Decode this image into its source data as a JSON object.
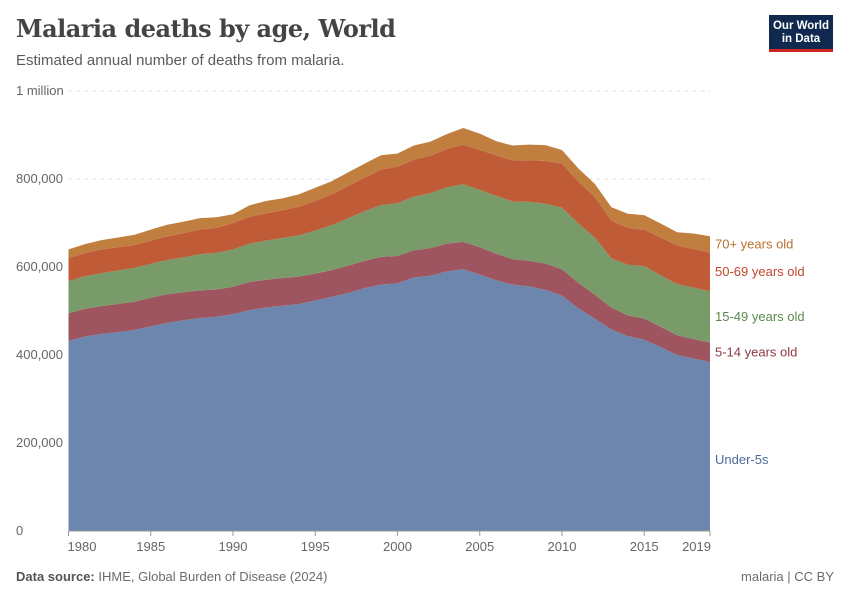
{
  "header": {
    "title": "Malaria deaths by age, World",
    "subtitle": "Estimated annual number of deaths from malaria.",
    "logo_text": "Our World in Data"
  },
  "footer": {
    "source_label": "Data source:",
    "source": "IHME, Global Burden of Disease (2024)",
    "license": "malaria | CC BY"
  },
  "chart_data": {
    "type": "area",
    "stacked": true,
    "title": "Malaria deaths by age, World",
    "subtitle": "Estimated annual number of deaths from malaria.",
    "xlim": [
      1980,
      2019
    ],
    "ylim": [
      0,
      1000000
    ],
    "x_ticks": [
      1980,
      1985,
      1990,
      1995,
      2000,
      2005,
      2010,
      2015,
      2019
    ],
    "y_ticks": [
      {
        "v": 0,
        "label": "0"
      },
      {
        "v": 200000,
        "label": "200,000"
      },
      {
        "v": 400000,
        "label": "400,000"
      },
      {
        "v": 600000,
        "label": "600,000"
      },
      {
        "v": 800000,
        "label": "800,000"
      },
      {
        "v": 1000000,
        "label": "1 million"
      }
    ],
    "grid": "horizontal dashed",
    "legend": "right, inline labels",
    "x": [
      1980,
      1981,
      1982,
      1983,
      1984,
      1985,
      1986,
      1987,
      1988,
      1989,
      1990,
      1991,
      1992,
      1993,
      1994,
      1995,
      1996,
      1997,
      1998,
      1999,
      2000,
      2001,
      2002,
      2003,
      2004,
      2005,
      2006,
      2007,
      2008,
      2009,
      2010,
      2011,
      2012,
      2013,
      2014,
      2015,
      2016,
      2017,
      2018,
      2019
    ],
    "series": [
      {
        "name": "Under-5s",
        "color": "#6d86ad",
        "label_color": "#4c6a9c",
        "values": [
          432000,
          442000,
          448000,
          452000,
          457000,
          465000,
          473000,
          479000,
          484000,
          487000,
          493000,
          502000,
          508000,
          512000,
          516000,
          524000,
          532000,
          541000,
          552000,
          560000,
          563000,
          576000,
          580000,
          590000,
          595000,
          583000,
          570000,
          560000,
          556000,
          548000,
          535000,
          506000,
          482000,
          458000,
          443000,
          435000,
          418000,
          400000,
          392000,
          384000
        ]
      },
      {
        "name": "5-14 years old",
        "color": "#9e5560",
        "label_color": "#8b3a46",
        "values": [
          63000,
          63000,
          63000,
          64000,
          64000,
          65000,
          65000,
          64000,
          63000,
          62000,
          62000,
          64000,
          63000,
          63000,
          62000,
          61000,
          61000,
          62000,
          62000,
          63000,
          62000,
          62000,
          63000,
          63000,
          62000,
          62000,
          60000,
          58000,
          58000,
          60000,
          60000,
          58000,
          55000,
          50000,
          47000,
          48000,
          46000,
          45000,
          44000,
          44000
        ]
      },
      {
        "name": "15-49 years old",
        "color": "#799a69",
        "label_color": "#5b8a4a",
        "values": [
          73000,
          74000,
          75000,
          76000,
          77000,
          77000,
          78000,
          79000,
          82000,
          83000,
          85000,
          87000,
          89000,
          91000,
          94000,
          98000,
          102000,
          108000,
          113000,
          118000,
          120000,
          122000,
          125000,
          128000,
          131000,
          130000,
          132000,
          131000,
          134000,
          136000,
          140000,
          135000,
          130000,
          112000,
          115000,
          119000,
          117000,
          116000,
          117000,
          117000
        ]
      },
      {
        "name": "50-69 years old",
        "color": "#c05b37",
        "label_color": "#c0462b",
        "values": [
          52000,
          53000,
          54000,
          53000,
          52000,
          53000,
          54000,
          55000,
          56000,
          57000,
          60000,
          61000,
          62000,
          63000,
          65000,
          67000,
          70000,
          73000,
          76000,
          80000,
          83000,
          84000,
          85000,
          87000,
          90000,
          91000,
          92000,
          93000,
          95000,
          97000,
          100000,
          95000,
          92000,
          86000,
          84000,
          83000,
          86000,
          88000,
          88000,
          88000
        ]
      },
      {
        "name": "70+ years old",
        "color": "#c07f3f",
        "label_color": "#b8702c",
        "values": [
          20000,
          20000,
          21000,
          22000,
          23000,
          25000,
          26000,
          26000,
          26000,
          24000,
          20000,
          26000,
          28000,
          27000,
          28000,
          30000,
          30000,
          31000,
          32000,
          33000,
          30000,
          32000,
          32000,
          34000,
          38000,
          37000,
          32000,
          34000,
          35000,
          36000,
          31000,
          30000,
          30000,
          30000,
          32000,
          33000,
          32000,
          30000,
          35000,
          37000
        ]
      }
    ]
  }
}
